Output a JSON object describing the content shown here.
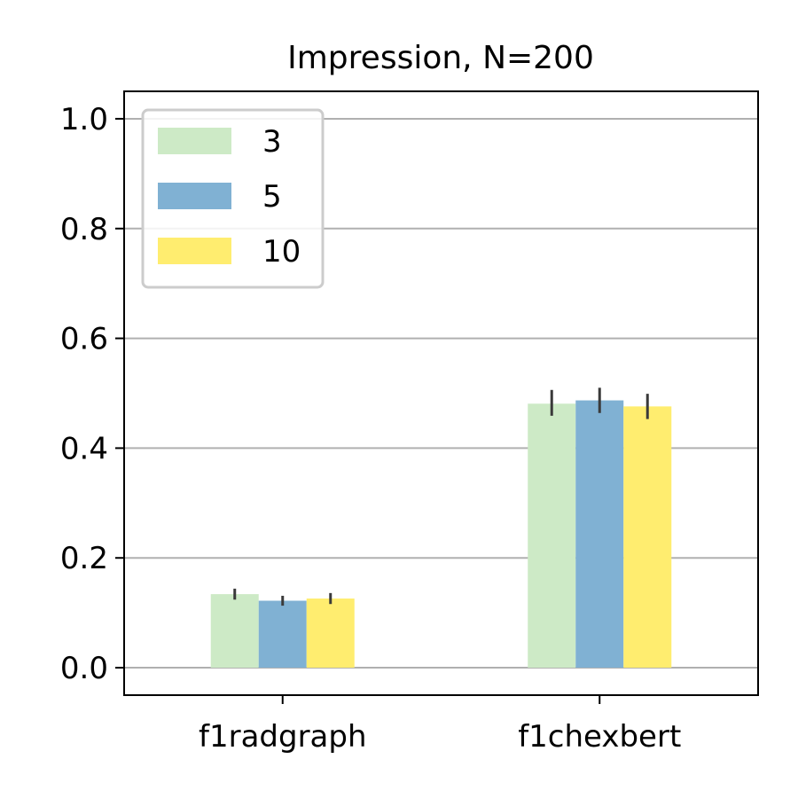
{
  "chart_data": {
    "type": "bar",
    "title": "Impression, N=200",
    "xlabel": "",
    "ylabel": "",
    "categories": [
      "f1radgraph",
      "f1chexbert"
    ],
    "series": [
      {
        "name": "3",
        "color": "#cdeac6",
        "values": [
          0.134,
          0.481
        ],
        "error_low": [
          0.124,
          0.459
        ],
        "error_high": [
          0.144,
          0.506
        ]
      },
      {
        "name": "5",
        "color": "#80b1d3",
        "values": [
          0.122,
          0.487
        ],
        "error_low": [
          0.113,
          0.464
        ],
        "error_high": [
          0.131,
          0.51
        ]
      },
      {
        "name": "10",
        "color": "#ffed6f",
        "values": [
          0.126,
          0.476
        ],
        "error_low": [
          0.116,
          0.453
        ],
        "error_high": [
          0.136,
          0.499
        ]
      }
    ],
    "ylim": [
      -0.05,
      1.05
    ],
    "yticks": [
      0.0,
      0.2,
      0.4,
      0.6,
      0.8,
      1.0
    ],
    "ytick_labels": [
      "0.0",
      "0.2",
      "0.4",
      "0.6",
      "0.8",
      "1.0"
    ],
    "grid": "y",
    "legend_position": "top-left"
  }
}
